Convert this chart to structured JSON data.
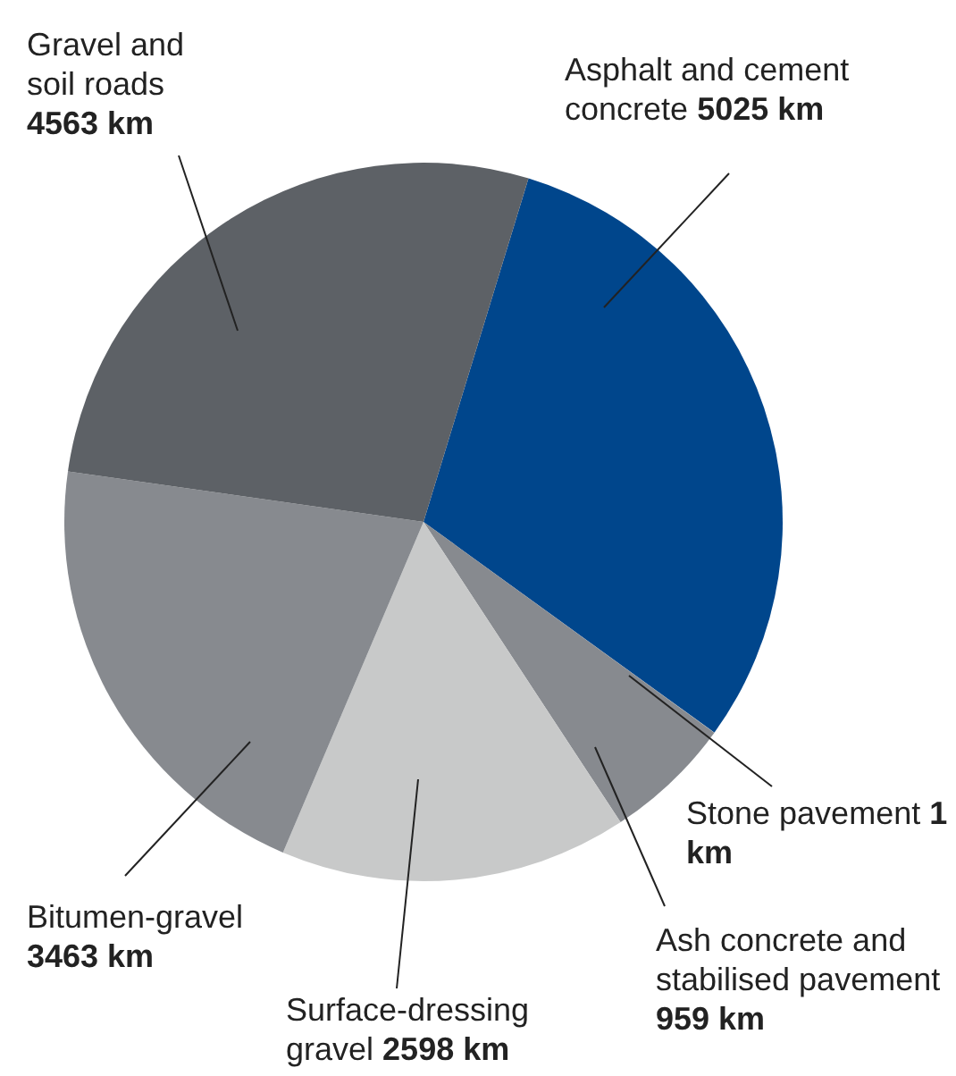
{
  "chart_data": {
    "type": "pie",
    "categories": [
      "Asphalt and cement concrete",
      "Stone pavement",
      "Ash concrete and stabilised pavement",
      "Surface-dressing gravel",
      "Bitumen-gravel",
      "Gravel and soil roads"
    ],
    "values": [
      5025,
      1,
      959,
      2598,
      3463,
      4563
    ],
    "value_labels": [
      "5025 km",
      "1 km",
      "959 km",
      "2598 km",
      "3463 km",
      "4563 km"
    ],
    "colors": [
      "#00468c",
      "#c8c9c9",
      "#878a8f",
      "#c8c9c9",
      "#878a8f",
      "#5d6166"
    ],
    "legend": false
  }
}
